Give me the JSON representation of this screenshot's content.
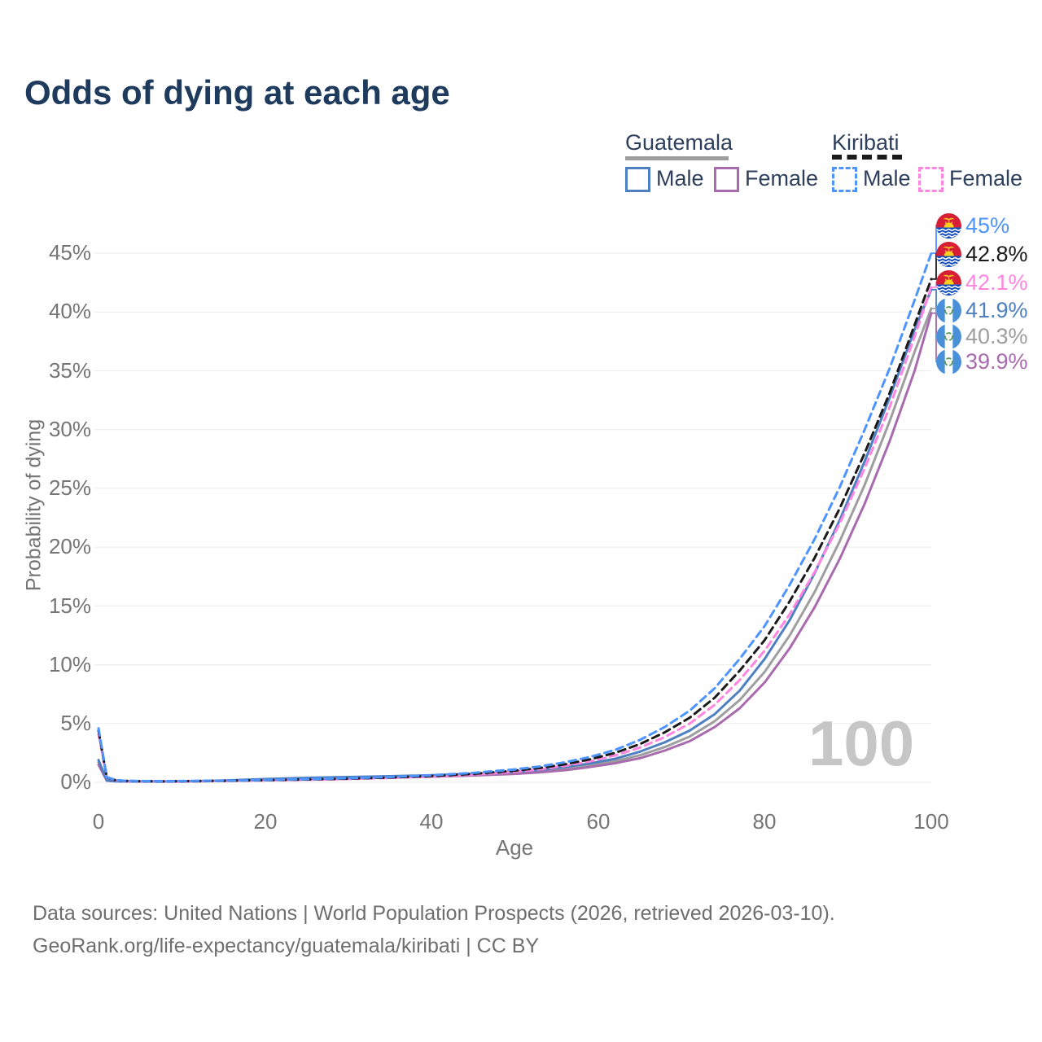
{
  "title": "Odds of dying at each age",
  "legend": {
    "groups": [
      {
        "label": "Guatemala",
        "line_style": "solid",
        "line_color": "#9e9e9e",
        "items": [
          {
            "label": "Male",
            "color": "#4e7fc0"
          },
          {
            "label": "Female",
            "color": "#a86bad"
          }
        ]
      },
      {
        "label": "Kiribati",
        "line_style": "dashed",
        "line_color": "#1a1a1a",
        "items": [
          {
            "label": "Male",
            "color": "#4d94ff"
          },
          {
            "label": "Female",
            "color": "#ff85e0"
          }
        ]
      }
    ]
  },
  "axes": {
    "y_label": "Probability of dying",
    "x_label": "Age",
    "y_ticks": [
      "45%",
      "40%",
      "35%",
      "30%",
      "25%",
      "20%",
      "15%",
      "10%",
      "5%",
      "0%"
    ],
    "x_ticks": [
      "0",
      "20",
      "40",
      "60",
      "80",
      "100"
    ]
  },
  "watermark": "100",
  "end_labels": [
    {
      "series": "kiribati-male",
      "flag": "kiribati",
      "value": "45%",
      "color": "#4d94ff"
    },
    {
      "series": "kiribati-both",
      "flag": "kiribati",
      "value": "42.8%",
      "color": "#1a1a1a"
    },
    {
      "series": "kiribati-female",
      "flag": "kiribati",
      "value": "42.1%",
      "color": "#ff85e0"
    },
    {
      "series": "guatemala-male",
      "flag": "guatemala",
      "value": "41.9%",
      "color": "#4e7fc0"
    },
    {
      "series": "guatemala-both",
      "flag": "guatemala",
      "value": "40.3%",
      "color": "#9e9e9e"
    },
    {
      "series": "guatemala-female",
      "flag": "guatemala",
      "value": "39.9%",
      "color": "#a86bad"
    }
  ],
  "footer": {
    "line1": "Data sources: United Nations | World Population Prospects (2026, retrieved 2026-03-10).",
    "line2": "GeoRank.org/life-expectancy/guatemala/kiribati | CC BY"
  },
  "chart_data": {
    "type": "line",
    "title": "Odds of dying at each age",
    "xlabel": "Age",
    "ylabel": "Probability of dying",
    "xlim": [
      0,
      100
    ],
    "ylim_percent": [
      0,
      47
    ],
    "grid": "horizontal",
    "legend_position": "top-right",
    "x": [
      0,
      1,
      2,
      3,
      5,
      8,
      10,
      15,
      20,
      25,
      30,
      35,
      40,
      45,
      50,
      53,
      56,
      59,
      62,
      65,
      68,
      71,
      74,
      77,
      80,
      83,
      86,
      89,
      92,
      95,
      98,
      100
    ],
    "unit": "percent",
    "series": [
      {
        "id": "guatemala-both",
        "name": "Guatemala (both sexes)",
        "color": "#9e9e9e",
        "dashed": false,
        "values": [
          1.7,
          0.15,
          0.09,
          0.08,
          0.07,
          0.06,
          0.07,
          0.13,
          0.24,
          0.33,
          0.4,
          0.46,
          0.54,
          0.65,
          0.8,
          0.95,
          1.15,
          1.45,
          1.8,
          2.3,
          3.0,
          3.9,
          5.2,
          7.0,
          9.4,
          12.5,
          16.2,
          20.5,
          25.3,
          30.7,
          36.6,
          40.3
        ]
      },
      {
        "id": "guatemala-female",
        "name": "Guatemala Female",
        "color": "#a86bad",
        "dashed": false,
        "values": [
          1.5,
          0.14,
          0.09,
          0.07,
          0.06,
          0.06,
          0.06,
          0.11,
          0.2,
          0.28,
          0.35,
          0.41,
          0.48,
          0.58,
          0.72,
          0.85,
          1.03,
          1.3,
          1.62,
          2.05,
          2.7,
          3.5,
          4.7,
          6.3,
          8.5,
          11.4,
          14.9,
          19.0,
          23.7,
          29.0,
          35.0,
          39.9
        ]
      },
      {
        "id": "guatemala-male",
        "name": "Guatemala Male",
        "color": "#4e7fc0",
        "dashed": false,
        "values": [
          1.9,
          0.16,
          0.1,
          0.08,
          0.07,
          0.07,
          0.08,
          0.15,
          0.28,
          0.38,
          0.45,
          0.52,
          0.6,
          0.72,
          0.9,
          1.05,
          1.3,
          1.6,
          2.0,
          2.6,
          3.4,
          4.4,
          5.8,
          7.8,
          10.5,
          13.8,
          17.8,
          22.3,
          27.3,
          32.7,
          38.5,
          41.9
        ]
      },
      {
        "id": "kiribati-female",
        "name": "Kiribati Female",
        "color": "#ff85e0",
        "dashed": true,
        "values": [
          4.1,
          0.4,
          0.17,
          0.12,
          0.09,
          0.08,
          0.09,
          0.12,
          0.16,
          0.21,
          0.28,
          0.37,
          0.49,
          0.65,
          0.9,
          1.1,
          1.4,
          1.78,
          2.28,
          2.95,
          3.85,
          5.0,
          6.6,
          8.7,
          11.2,
          14.3,
          17.9,
          22.0,
          26.7,
          31.9,
          37.9,
          42.1
        ]
      },
      {
        "id": "kiribati-both",
        "name": "Kiribati (both sexes)",
        "color": "#1a1a1a",
        "dashed": true,
        "values": [
          4.4,
          0.42,
          0.19,
          0.13,
          0.1,
          0.09,
          0.1,
          0.13,
          0.18,
          0.24,
          0.31,
          0.41,
          0.54,
          0.72,
          1.0,
          1.22,
          1.53,
          1.95,
          2.5,
          3.25,
          4.25,
          5.5,
          7.2,
          9.5,
          12.1,
          15.4,
          19.1,
          23.3,
          28.0,
          33.1,
          38.9,
          42.8
        ]
      },
      {
        "id": "kiribati-male",
        "name": "Kiribati Male",
        "color": "#4d94ff",
        "dashed": true,
        "values": [
          4.6,
          0.45,
          0.2,
          0.14,
          0.11,
          0.1,
          0.11,
          0.14,
          0.2,
          0.27,
          0.35,
          0.45,
          0.6,
          0.8,
          1.1,
          1.35,
          1.7,
          2.15,
          2.75,
          3.6,
          4.7,
          6.1,
          8.0,
          10.5,
          13.3,
          16.8,
          20.7,
          25.1,
          30.0,
          35.2,
          41.0,
          45.0
        ]
      }
    ],
    "end_values_percent": {
      "kiribati-male": 45,
      "kiribati-both": 42.8,
      "kiribati-female": 42.1,
      "guatemala-male": 41.9,
      "guatemala-both": 40.3,
      "guatemala-female": 39.9
    }
  }
}
